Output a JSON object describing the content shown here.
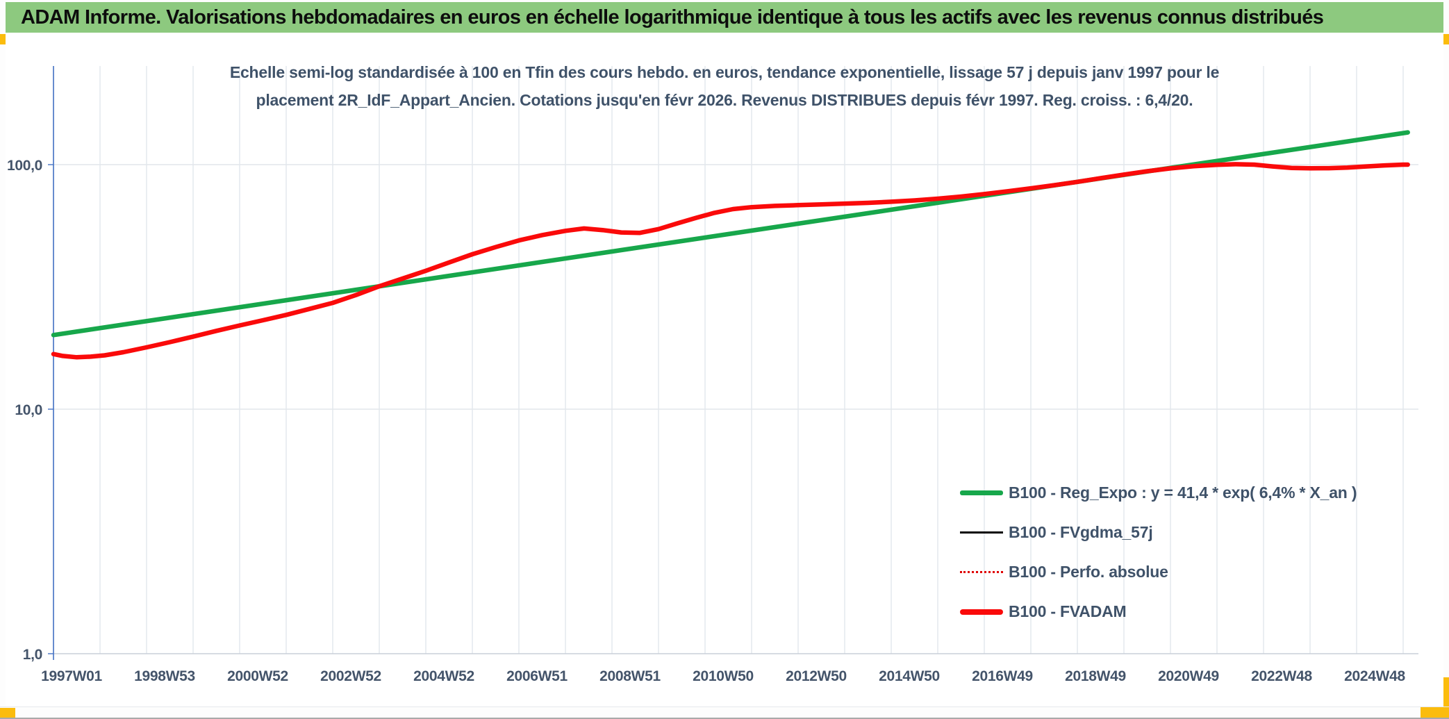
{
  "header": {
    "title": "ADAM Informe. Valorisations hebdomadaires en euros en échelle logarithmique identique à tous les actifs avec les revenus connus distribués"
  },
  "subtitle": {
    "line1": "Echelle semi-log standardisée à 100 en Tfin des cours hebdo. en euros, tendance exponentielle, lissage 57 j depuis janv 1997 pour le",
    "line2": "placement 2R_IdF_Appart_Ancien. Cotations jusqu'en févr 2026. Revenus DISTRIBUES depuis févr 1997. Reg. croiss. : 6,4/20."
  },
  "legend": {
    "items": [
      {
        "label": "B100 - Reg_Expo : y = 41,4 * exp( 6,4% *  X_an )",
        "color": "#17a74b",
        "style": "thick"
      },
      {
        "label": "B100 - FVgdma_57j",
        "color": "#000000",
        "style": "thin"
      },
      {
        "label": "B100 - Perfo. absolue",
        "color": "#e00000",
        "style": "dotted"
      },
      {
        "label": "B100 - FVADAM",
        "color": "#fa0a0a",
        "style": "thick"
      }
    ]
  },
  "colors": {
    "header_bg": "#8dc97f",
    "selection_marks": "#fbbc0d",
    "axis_line": "#4472c4",
    "gridline": "#e2e6ec",
    "tick_text": "#44546a",
    "reg_expo": "#17a74b",
    "fvadam": "#fa0a0a"
  },
  "chart_data": {
    "type": "line",
    "title": "Echelle semi-log standardisée à 100 en Tfin des cours hebdo. en euros, tendance exponentielle, lissage 57 j depuis janv 1997 pour le placement 2R_IdF_Appart_Ancien. Cotations jusqu'en févr 2026. Revenus DISTRIBUES depuis févr 1997. Reg. croiss. : 6,4/20.",
    "y_scale": "log",
    "ylim": [
      1,
      250
    ],
    "grid": "vertical-yearly",
    "legend_position": "inside-lower-right",
    "y_ticks": [
      {
        "value": 1,
        "label": "1,0"
      },
      {
        "value": 10,
        "label": "10,0"
      },
      {
        "value": 100,
        "label": "100,0"
      }
    ],
    "x_ticks": [
      {
        "year": 1997.0,
        "label": "1997W01"
      },
      {
        "year": 1999.0,
        "label": "1998W53"
      },
      {
        "year": 2001.0,
        "label": "2000W52"
      },
      {
        "year": 2003.0,
        "label": "2002W52"
      },
      {
        "year": 2005.0,
        "label": "2004W52"
      },
      {
        "year": 2007.0,
        "label": "2006W51"
      },
      {
        "year": 2009.0,
        "label": "2008W51"
      },
      {
        "year": 2011.0,
        "label": "2010W50"
      },
      {
        "year": 2013.0,
        "label": "2012W50"
      },
      {
        "year": 2015.0,
        "label": "2014W50"
      },
      {
        "year": 2017.0,
        "label": "2016W49"
      },
      {
        "year": 2019.0,
        "label": "2018W49"
      },
      {
        "year": 2021.0,
        "label": "2020W49"
      },
      {
        "year": 2023.0,
        "label": "2022W48"
      },
      {
        "year": 2025.0,
        "label": "2024W48"
      }
    ],
    "x_grid_start": 1997,
    "x_grid_end": 2026,
    "x_range": [
      1997.0,
      2026.1
    ],
    "series": [
      {
        "name": "B100 - Reg_Expo",
        "formula": "y = 41,4 * exp( 6,4% * X_an )",
        "color": "#17a74b",
        "width": 6.5,
        "points": [
          [
            1997.0,
            20.1
          ],
          [
            2026.1,
            135.5
          ]
        ]
      },
      {
        "name": "B100 - FVgdma_57j",
        "color": "#000000",
        "width": 2.5,
        "points_same_as": "B100 - FVADAM",
        "note": "coincides with FVADAM, hidden beneath it"
      },
      {
        "name": "B100 - Perfo. absolue",
        "color": "#e00000",
        "width": 2,
        "dash": "2 4",
        "points_same_as": "B100 - FVADAM",
        "note": "coincides with FVADAM, hidden beneath it"
      },
      {
        "name": "B100 - FVADAM",
        "color": "#fa0a0a",
        "width": 6.5,
        "points": [
          [
            1997.0,
            16.8
          ],
          [
            1997.2,
            16.5
          ],
          [
            1997.5,
            16.3
          ],
          [
            1997.8,
            16.4
          ],
          [
            1998.1,
            16.6
          ],
          [
            1998.5,
            17.1
          ],
          [
            1999.0,
            17.9
          ],
          [
            1999.5,
            18.8
          ],
          [
            2000.0,
            19.8
          ],
          [
            2000.5,
            20.9
          ],
          [
            2001.0,
            22.0
          ],
          [
            2001.5,
            23.1
          ],
          [
            2002.0,
            24.3
          ],
          [
            2002.5,
            25.7
          ],
          [
            2003.0,
            27.2
          ],
          [
            2003.5,
            29.3
          ],
          [
            2004.0,
            31.8
          ],
          [
            2004.5,
            34.2
          ],
          [
            2005.0,
            36.8
          ],
          [
            2005.5,
            39.8
          ],
          [
            2006.0,
            43.0
          ],
          [
            2006.5,
            46.0
          ],
          [
            2007.0,
            49.0
          ],
          [
            2007.5,
            51.5
          ],
          [
            2008.0,
            53.6
          ],
          [
            2008.4,
            54.8
          ],
          [
            2008.8,
            54.0
          ],
          [
            2009.2,
            52.8
          ],
          [
            2009.6,
            52.6
          ],
          [
            2010.0,
            54.5
          ],
          [
            2010.4,
            57.5
          ],
          [
            2010.8,
            60.5
          ],
          [
            2011.2,
            63.5
          ],
          [
            2011.6,
            65.8
          ],
          [
            2012.0,
            67.0
          ],
          [
            2012.5,
            67.8
          ],
          [
            2013.0,
            68.3
          ],
          [
            2013.5,
            68.8
          ],
          [
            2014.0,
            69.3
          ],
          [
            2014.5,
            69.8
          ],
          [
            2015.0,
            70.5
          ],
          [
            2015.5,
            71.4
          ],
          [
            2016.0,
            72.6
          ],
          [
            2016.5,
            74.0
          ],
          [
            2017.0,
            75.8
          ],
          [
            2017.5,
            77.8
          ],
          [
            2018.0,
            80.0
          ],
          [
            2018.5,
            82.4
          ],
          [
            2019.0,
            85.0
          ],
          [
            2019.5,
            88.0
          ],
          [
            2020.0,
            91.0
          ],
          [
            2020.5,
            94.0
          ],
          [
            2021.0,
            96.5
          ],
          [
            2021.5,
            98.5
          ],
          [
            2022.0,
            99.8
          ],
          [
            2022.4,
            100.4
          ],
          [
            2022.8,
            100.0
          ],
          [
            2023.2,
            98.3
          ],
          [
            2023.6,
            97.0
          ],
          [
            2024.0,
            96.6
          ],
          [
            2024.4,
            96.7
          ],
          [
            2024.8,
            97.3
          ],
          [
            2025.2,
            98.3
          ],
          [
            2025.6,
            99.3
          ],
          [
            2026.0,
            100.0
          ],
          [
            2026.1,
            100.0
          ]
        ]
      }
    ]
  }
}
